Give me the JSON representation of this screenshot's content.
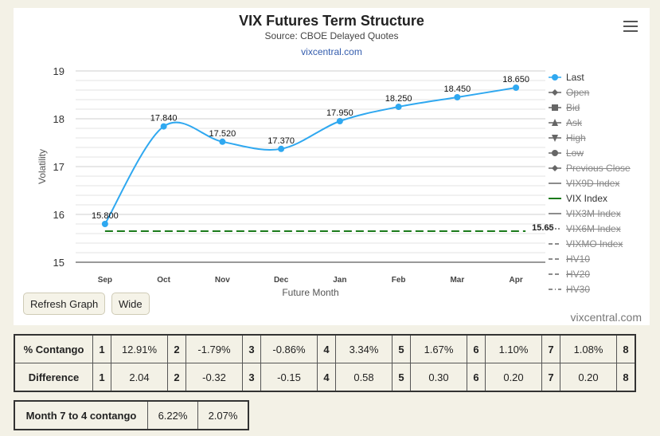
{
  "chart_data": {
    "type": "line",
    "title": "VIX Futures Term Structure",
    "subtitle": "Source: CBOE Delayed Quotes",
    "credit": "vixcentral.com",
    "xlabel": "Future Month",
    "ylabel": "Volatility",
    "categories": [
      "Sep",
      "Oct",
      "Nov",
      "Dec",
      "Jan",
      "Feb",
      "Mar",
      "Apr"
    ],
    "ylim": [
      15,
      19
    ],
    "yticks": [
      15,
      16,
      17,
      18,
      19
    ],
    "grid": true,
    "series": [
      {
        "name": "Last",
        "values": [
          15.8,
          17.84,
          17.52,
          17.37,
          17.95,
          18.25,
          18.45,
          18.65
        ],
        "labels": [
          "15.800",
          "17.840",
          "17.520",
          "17.370",
          "17.950",
          "18.250",
          "18.450",
          "18.650"
        ],
        "color": "#2fa8f0",
        "visible": true
      },
      {
        "name": "VIX Index",
        "values": [
          15.65,
          15.65,
          15.65,
          15.65,
          15.65,
          15.65,
          15.65,
          15.65
        ],
        "end_label": "15.65",
        "color": "#1a7a1a",
        "style": "dashed",
        "visible": true
      }
    ],
    "legend_position": "right",
    "legend": [
      {
        "label": "Last",
        "symbol": "dot-line",
        "color": "#2fa8f0",
        "visible": true
      },
      {
        "label": "Open",
        "symbol": "diamond-line",
        "color": "#666",
        "visible": false
      },
      {
        "label": "Bid",
        "symbol": "square-line",
        "color": "#666",
        "visible": false
      },
      {
        "label": "Ask",
        "symbol": "triangle-line",
        "color": "#666",
        "visible": false
      },
      {
        "label": "High",
        "symbol": "triangle-down-line",
        "color": "#666",
        "visible": false
      },
      {
        "label": "Low",
        "symbol": "dot-line",
        "color": "#666",
        "visible": false
      },
      {
        "label": "Previous Close",
        "symbol": "diamond-line",
        "color": "#666",
        "visible": false
      },
      {
        "label": "VIX9D Index",
        "symbol": "line",
        "color": "#666",
        "visible": false
      },
      {
        "label": "VIX Index",
        "symbol": "line",
        "color": "#1a7a1a",
        "visible": true
      },
      {
        "label": "VIX3M Index",
        "symbol": "line",
        "color": "#666",
        "visible": false
      },
      {
        "label": "VIX6M Index",
        "symbol": "dotted-line",
        "color": "#666",
        "visible": false
      },
      {
        "label": "VIXMO Index",
        "symbol": "dashed-line",
        "color": "#666",
        "visible": false
      },
      {
        "label": "HV10",
        "symbol": "dashed-line",
        "color": "#666",
        "visible": false
      },
      {
        "label": "HV20",
        "symbol": "dashed-line",
        "color": "#666",
        "visible": false
      },
      {
        "label": "HV30",
        "symbol": "dashdot-line",
        "color": "#666",
        "visible": false
      }
    ]
  },
  "buttons": {
    "refresh": "Refresh Graph",
    "wide": "Wide"
  },
  "watermark": "vixcentral.com",
  "contango_table": {
    "row1_label": "% Contango",
    "row1": [
      [
        "1",
        "12.91%"
      ],
      [
        "2",
        "-1.79%"
      ],
      [
        "3",
        "-0.86%"
      ],
      [
        "4",
        "3.34%"
      ],
      [
        "5",
        "1.67%"
      ],
      [
        "6",
        "1.10%"
      ],
      [
        "7",
        "1.08%"
      ],
      [
        "8",
        ""
      ]
    ],
    "row2_label": "Difference",
    "row2": [
      [
        "1",
        "2.04"
      ],
      [
        "2",
        "-0.32"
      ],
      [
        "3",
        "-0.15"
      ],
      [
        "4",
        "0.58"
      ],
      [
        "5",
        "0.30"
      ],
      [
        "6",
        "0.20"
      ],
      [
        "7",
        "0.20"
      ],
      [
        "8",
        ""
      ]
    ]
  },
  "contango_7_4": {
    "label": "Month 7 to 4 contango",
    "value1": "6.22%",
    "value2": "2.07%"
  }
}
